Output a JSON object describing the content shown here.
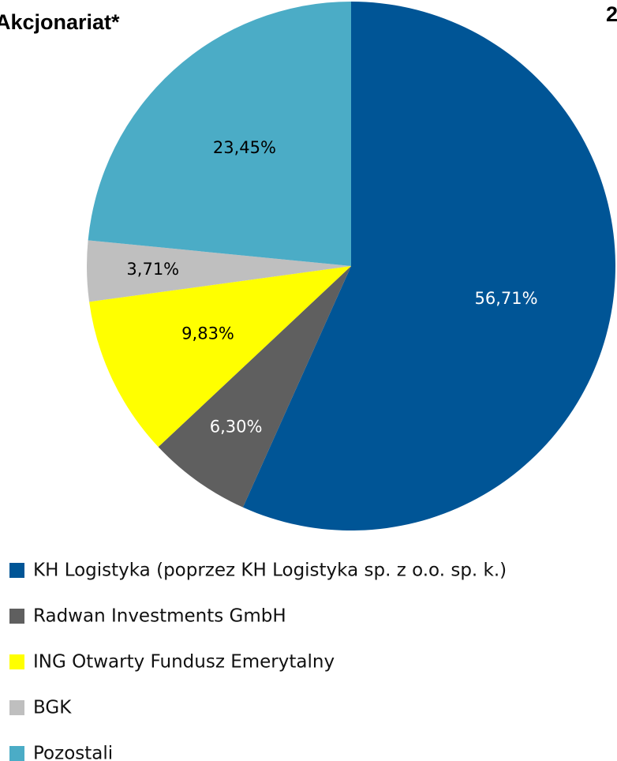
{
  "chart_data": {
    "type": "pie",
    "title": "Akcjonariat*",
    "annotation": "2",
    "categories": [
      "KH Logistyka (poprzez KH Logistyka sp. z o.o. sp. k.)",
      "Radwan Investments GmbH",
      "ING Otwarty Fundusz Emerytalny",
      "BGK",
      "Pozostali"
    ],
    "values": [
      56.71,
      6.3,
      9.83,
      3.71,
      23.45
    ],
    "value_labels": [
      "56,71%",
      "6,30%",
      "9,83%",
      "3,71%",
      "23,45%"
    ],
    "colors": [
      "#005596",
      "#5f5f5f",
      "#ffff00",
      "#bfbfbf",
      "#4bacc6"
    ],
    "legend": "bottom"
  }
}
